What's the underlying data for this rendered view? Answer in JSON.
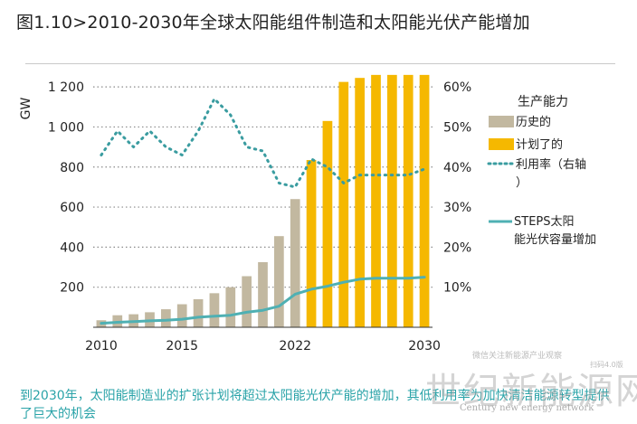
{
  "header": {
    "title": "图1.10>2010-2030年全球太阳能组件制造和太阳能光伏产能增加"
  },
  "chart_data": {
    "type": "bar",
    "x": [
      2010,
      2011,
      2012,
      2013,
      2014,
      2015,
      2016,
      2017,
      2018,
      2019,
      2020,
      2021,
      2022,
      2023,
      2024,
      2025,
      2026,
      2027,
      2028,
      2029,
      2030
    ],
    "xticks": [
      "2010",
      "2015",
      "2022",
      "2030"
    ],
    "ylabel": "GW",
    "ylim": [
      0,
      1300
    ],
    "yticks": [
      "200",
      "400",
      "600",
      "800",
      "1 000",
      "1 200"
    ],
    "y2lim": [
      0,
      0.65
    ],
    "y2ticks": [
      "10%",
      "20%",
      "30%",
      "40%",
      "50%",
      "60%"
    ],
    "legend_title": "生产能力",
    "series": [
      {
        "name": "历史的",
        "kind": "bar",
        "color": "#c2b8a0",
        "values": [
          35,
          60,
          65,
          75,
          90,
          115,
          140,
          170,
          200,
          255,
          325,
          455,
          640,
          null,
          null,
          null,
          null,
          null,
          null,
          null,
          null
        ]
      },
      {
        "name": "计划了的",
        "kind": "bar",
        "color": "#f5b800",
        "values": [
          null,
          null,
          null,
          null,
          null,
          null,
          null,
          null,
          null,
          null,
          null,
          null,
          null,
          835,
          1030,
          1225,
          1245,
          1260,
          1260,
          1260,
          1260
        ]
      },
      {
        "name": "利用率（右轴）",
        "kind": "line",
        "style": "dotted",
        "axis": "right",
        "color": "#3a9ca0",
        "values": [
          0.43,
          0.49,
          0.45,
          0.49,
          0.45,
          0.43,
          0.49,
          0.57,
          0.53,
          0.45,
          0.44,
          0.36,
          0.35,
          0.42,
          0.4,
          0.36,
          0.38,
          0.38,
          0.38,
          0.38,
          0.395
        ]
      },
      {
        "name": "STEPS太阳能光伏容量增加",
        "kind": "line",
        "style": "solid",
        "color": "#4fb0b3",
        "values": [
          20,
          25,
          28,
          32,
          35,
          40,
          50,
          55,
          60,
          75,
          85,
          105,
          165,
          190,
          205,
          225,
          240,
          245,
          245,
          245,
          250
        ]
      }
    ]
  },
  "caption": "到2030年，太阳能制造业的扩张计划将超过太阳能光伏产能的增加，其低利用率为加快清洁能源转型提供了巨大的机会",
  "watermarks": {
    "small_text": "微信关注新能源产业观察",
    "scan_text": "扫码4.0版",
    "brand_cn": "世纪新能源网",
    "brand_en": "Century new energy network"
  }
}
